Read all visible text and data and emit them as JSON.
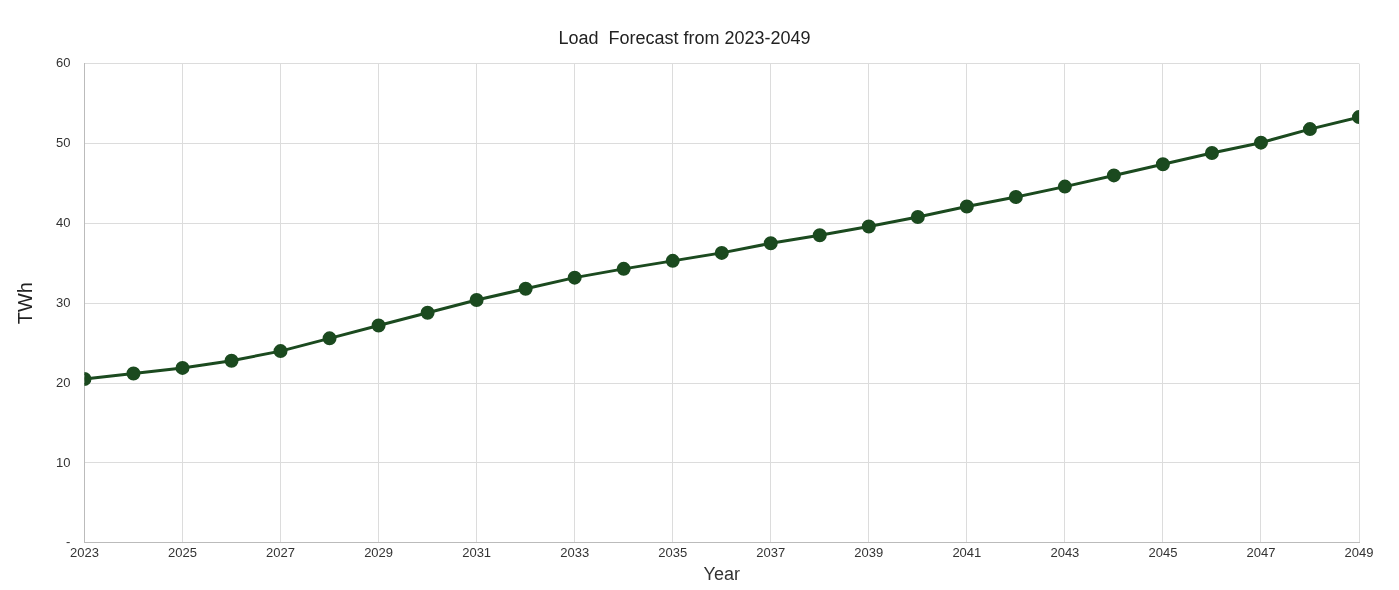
{
  "chart_data": {
    "type": "line",
    "title": "Load  Forecast from 2023-2049",
    "xlabel": "Year",
    "ylabel": "TWh",
    "x": [
      2023,
      2024,
      2025,
      2026,
      2027,
      2028,
      2029,
      2030,
      2031,
      2032,
      2033,
      2034,
      2035,
      2036,
      2037,
      2038,
      2039,
      2040,
      2041,
      2042,
      2043,
      2044,
      2045,
      2046,
      2047,
      2048,
      2049
    ],
    "series": [
      {
        "color": "#1b4a1f",
        "values": [
          20.5,
          21.2,
          21.9,
          22.8,
          24.0,
          25.6,
          27.2,
          28.8,
          30.4,
          31.8,
          33.2,
          34.3,
          35.3,
          36.3,
          37.5,
          38.5,
          39.6,
          40.8,
          42.1,
          43.3,
          44.6,
          46.0,
          47.4,
          48.8,
          50.1,
          51.8,
          53.3
        ]
      }
    ],
    "xlim": [
      2023,
      2049
    ],
    "xticks": [
      2023,
      2025,
      2027,
      2029,
      2031,
      2033,
      2035,
      2037,
      2039,
      2041,
      2043,
      2045,
      2047,
      2049
    ],
    "ylim": [
      0,
      60
    ],
    "yticks": [
      {
        "value": 0,
        "label": "-"
      },
      10,
      20,
      30,
      40,
      50,
      60
    ],
    "grid": true,
    "legend": false,
    "marker": "circle",
    "line_style": "solid"
  }
}
